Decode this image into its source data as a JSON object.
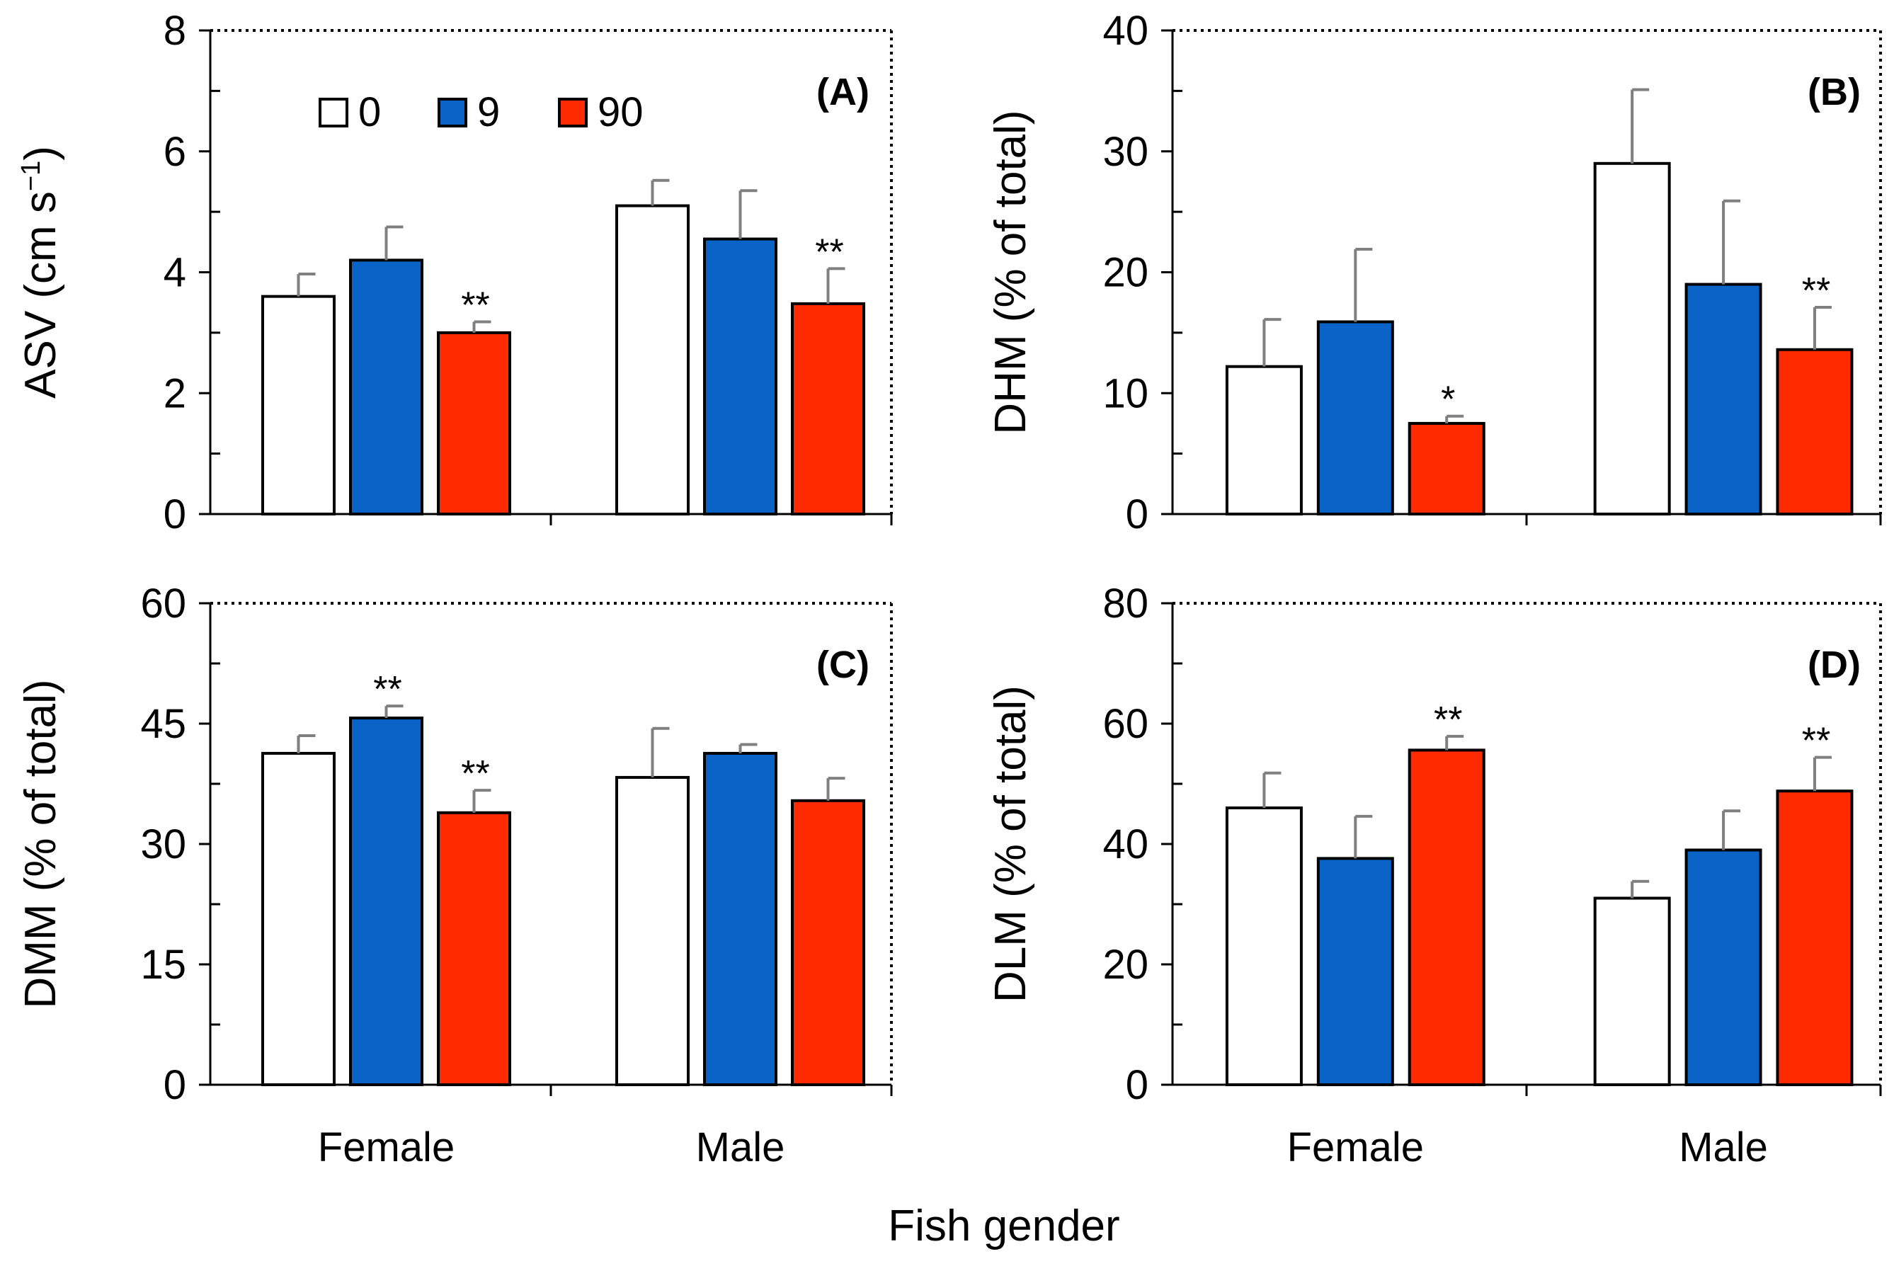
{
  "chart_data": {
    "x_title": "Fish gender",
    "legend": [
      {
        "label": "0",
        "color": "#ffffff"
      },
      {
        "label": "9",
        "color": "#0a64c8"
      },
      {
        "label": "90",
        "color": "#ff2a00"
      }
    ],
    "panels": [
      {
        "type": "bar",
        "panel_label": "(A)",
        "ylabel": "ASV (cm s",
        "ylabel_sup": "−1",
        "ylabel_close": ")",
        "ylim": [
          0,
          8
        ],
        "yticks": [
          "0",
          "2",
          "4",
          "6",
          "8"
        ],
        "categories": [
          "Female",
          "Male"
        ],
        "series": [
          {
            "name": "0",
            "values": [
              3.6,
              5.1
            ],
            "errors": [
              0.37,
              0.42
            ],
            "sig": [
              "",
              ""
            ]
          },
          {
            "name": "9",
            "values": [
              4.2,
              4.55
            ],
            "errors": [
              0.55,
              0.8
            ],
            "sig": [
              "",
              ""
            ]
          },
          {
            "name": "90",
            "values": [
              3.0,
              3.48
            ],
            "errors": [
              0.18,
              0.58
            ],
            "sig": [
              "**",
              "**"
            ]
          }
        ]
      },
      {
        "type": "bar",
        "panel_label": "(B)",
        "ylabel": "DHM (% of total)",
        "ylim": [
          0,
          40
        ],
        "yticks": [
          "0",
          "10",
          "20",
          "30",
          "40"
        ],
        "categories": [
          "Female",
          "Male"
        ],
        "series": [
          {
            "name": "0",
            "values": [
              12.2,
              29.0
            ],
            "errors": [
              3.9,
              6.1
            ],
            "sig": [
              "",
              ""
            ]
          },
          {
            "name": "9",
            "values": [
              15.9,
              19.0
            ],
            "errors": [
              6.0,
              6.9
            ],
            "sig": [
              "",
              ""
            ]
          },
          {
            "name": "90",
            "values": [
              7.5,
              13.6
            ],
            "errors": [
              0.6,
              3.5
            ],
            "sig": [
              "*",
              "**"
            ]
          }
        ]
      },
      {
        "type": "bar",
        "panel_label": "(C)",
        "ylabel": "DMM (% of total)",
        "ylim": [
          0,
          60
        ],
        "yticks": [
          "0",
          "15",
          "30",
          "45",
          "60"
        ],
        "categories": [
          "Female",
          "Male"
        ],
        "series": [
          {
            "name": "0",
            "values": [
              41.3,
              38.3
            ],
            "errors": [
              2.2,
              6.1
            ],
            "sig": [
              "",
              ""
            ]
          },
          {
            "name": "9",
            "values": [
              45.7,
              41.3
            ],
            "errors": [
              1.5,
              1.1
            ],
            "sig": [
              "**",
              ""
            ]
          },
          {
            "name": "90",
            "values": [
              33.9,
              35.4
            ],
            "errors": [
              2.8,
              2.8
            ],
            "sig": [
              "**",
              ""
            ]
          }
        ]
      },
      {
        "type": "bar",
        "panel_label": "(D)",
        "ylabel": "DLM (% of total)",
        "ylim": [
          0,
          80
        ],
        "yticks": [
          "0",
          "20",
          "40",
          "60",
          "80"
        ],
        "categories": [
          "Female",
          "Male"
        ],
        "series": [
          {
            "name": "0",
            "values": [
              46.0,
              31.0
            ],
            "errors": [
              5.8,
              2.8
            ],
            "sig": [
              "",
              ""
            ]
          },
          {
            "name": "9",
            "values": [
              37.6,
              39.0
            ],
            "errors": [
              7.0,
              6.5
            ],
            "sig": [
              "",
              ""
            ]
          },
          {
            "name": "90",
            "values": [
              55.6,
              48.8
            ],
            "errors": [
              2.3,
              5.6
            ],
            "sig": [
              "**",
              "**"
            ]
          }
        ]
      }
    ]
  }
}
